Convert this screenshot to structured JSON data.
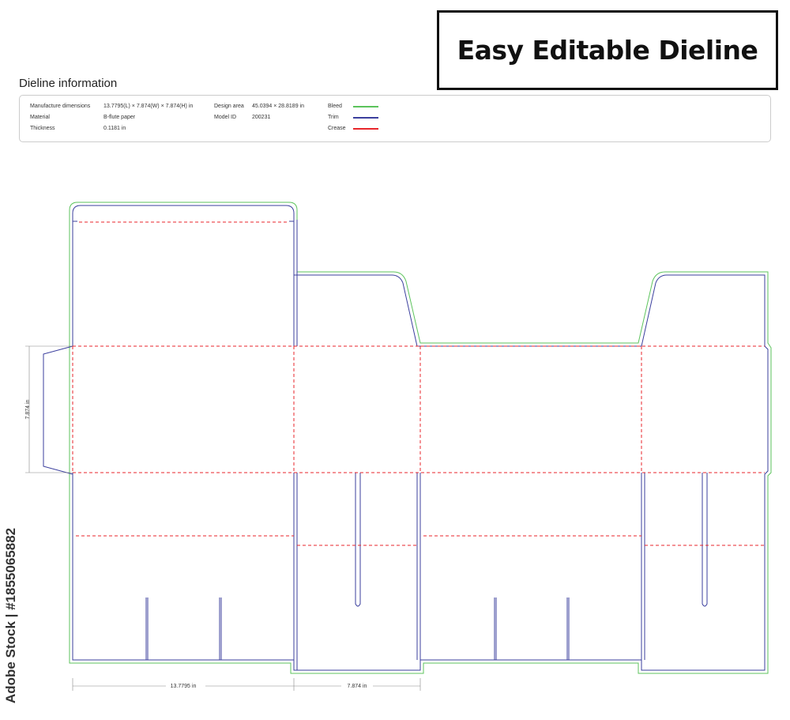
{
  "title": "Easy Editable  Dieline",
  "info": {
    "heading": "Dieline information",
    "rows": [
      {
        "label": "Manufacture dimensions",
        "value": "13.7795(L) × 7.874(W) × 7.874(H) in"
      },
      {
        "label": "Material",
        "value": "B-flute paper"
      },
      {
        "label": "Thickness",
        "value": "0.1181 in"
      }
    ],
    "rows2": [
      {
        "label": "Design area",
        "value": "45.0394 × 28.8189 in"
      },
      {
        "label": "Model ID",
        "value": "200231"
      }
    ],
    "legend": [
      {
        "label": "Bleed",
        "color": "#5cc35c"
      },
      {
        "label": "Trim",
        "color": "#3b3f9e"
      },
      {
        "label": "Crease",
        "color": "#e8262b"
      }
    ]
  },
  "dimensions": {
    "height": "7.874 in",
    "length": "13.7795 in",
    "width": "7.874 in"
  },
  "watermark": "Adobe Stock | #1855065882"
}
